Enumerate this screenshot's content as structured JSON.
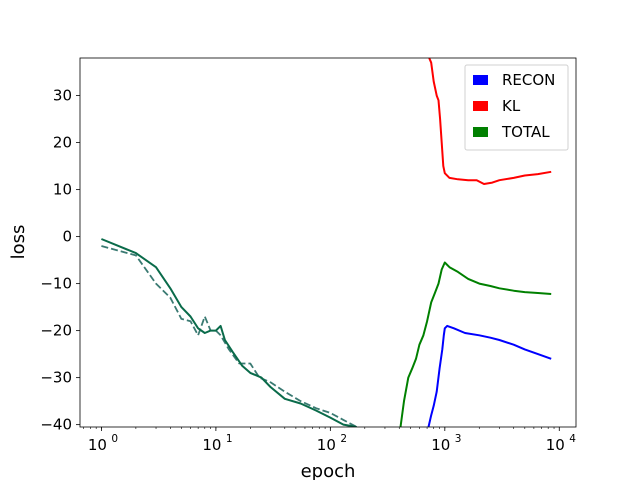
{
  "chart_data": {
    "type": "line",
    "xlabel": "epoch",
    "ylabel": "loss",
    "xscale": "log",
    "xlim": [
      0.65,
      14000
    ],
    "ylim": [
      -40.5,
      38
    ],
    "grid": false,
    "legend_position": "top-right",
    "x_ticks": [
      {
        "value": 1,
        "base": "10",
        "exp": "0"
      },
      {
        "value": 10,
        "base": "10",
        "exp": "1"
      },
      {
        "value": 100,
        "base": "10",
        "exp": "2"
      },
      {
        "value": 1000,
        "base": "10",
        "exp": "3"
      },
      {
        "value": 10000,
        "base": "10",
        "exp": "4"
      }
    ],
    "y_ticks": [
      {
        "value": 30,
        "label": "30"
      },
      {
        "value": 20,
        "label": "20"
      },
      {
        "value": 10,
        "label": "10"
      },
      {
        "value": 0,
        "label": "0"
      },
      {
        "value": -10,
        "label": "−10"
      },
      {
        "value": -20,
        "label": "−20"
      },
      {
        "value": -30,
        "label": "−30"
      },
      {
        "value": -40,
        "label": "−40"
      }
    ],
    "legend": [
      {
        "label": "RECON",
        "color": "#0000ff"
      },
      {
        "label": "KL",
        "color": "#ff0000"
      },
      {
        "label": "TOTAL",
        "color": "#008000"
      }
    ],
    "series": [
      {
        "style": "dashed",
        "color": "#3a7a72",
        "x": [
          1,
          2,
          3,
          4,
          5,
          6,
          7,
          8,
          9,
          10,
          11,
          13,
          16,
          20,
          24,
          30,
          40,
          55,
          75,
          100,
          130,
          170
        ],
        "y": [
          -2,
          -4,
          -10,
          -13,
          -17.5,
          -18,
          -21,
          -17,
          -20,
          -20,
          -21,
          -24,
          -27,
          -27,
          -30,
          -31,
          -33,
          -35,
          -36.5,
          -37.5,
          -39,
          -40.5
        ]
      },
      {
        "style": "solid",
        "color": "#0a6b4a",
        "x": [
          1,
          2,
          3,
          4,
          5,
          6,
          7,
          8,
          9,
          10,
          11,
          12,
          14,
          17,
          20,
          25,
          30,
          40,
          55,
          75,
          100,
          130,
          170
        ],
        "y": [
          -0.5,
          -3.5,
          -6.5,
          -11,
          -15,
          -17,
          -19.5,
          -20.5,
          -20,
          -20,
          -19,
          -22,
          -24.5,
          -27.5,
          -29,
          -30,
          -32,
          -34.5,
          -35.5,
          -37,
          -38.5,
          -40,
          -40.5
        ]
      },
      {
        "style": "solid",
        "color": "#008000",
        "x": [
          410,
          440,
          480,
          520,
          560,
          600,
          650,
          700,
          760,
          820,
          880,
          940,
          1000,
          1100,
          1300,
          1600,
          2000,
          2500,
          3000,
          4000,
          5000,
          6500,
          8500
        ],
        "y": [
          -40.5,
          -35,
          -30,
          -28,
          -26,
          -23,
          -21,
          -18,
          -14,
          -12,
          -10,
          -7,
          -5.5,
          -6.5,
          -7.5,
          -9,
          -10,
          -10.5,
          -11,
          -11.5,
          -11.8,
          -12,
          -12.2
        ]
      },
      {
        "style": "solid",
        "color": "#0000ff",
        "x": [
          720,
          760,
          800,
          850,
          900,
          950,
          980,
          1000,
          1050,
          1200,
          1500,
          2000,
          2500,
          3000,
          4000,
          5000,
          6500,
          8500
        ],
        "y": [
          -40.5,
          -38,
          -36,
          -33,
          -28,
          -24,
          -21,
          -19.5,
          -19,
          -19.5,
          -20.5,
          -21,
          -21.5,
          -22,
          -23,
          -24,
          -25,
          -26
        ]
      },
      {
        "style": "solid",
        "color": "#ff0000",
        "x": [
          730,
          760,
          800,
          850,
          880,
          910,
          940,
          970,
          1000,
          1100,
          1300,
          1600,
          1900,
          2200,
          2600,
          3000,
          4000,
          5000,
          6500,
          8500
        ],
        "y": [
          38,
          37,
          33,
          30,
          29,
          25,
          20,
          15,
          13.5,
          12.5,
          12.2,
          12,
          12,
          11.2,
          11.5,
          12,
          12.5,
          13,
          13.3,
          13.8
        ]
      }
    ]
  }
}
